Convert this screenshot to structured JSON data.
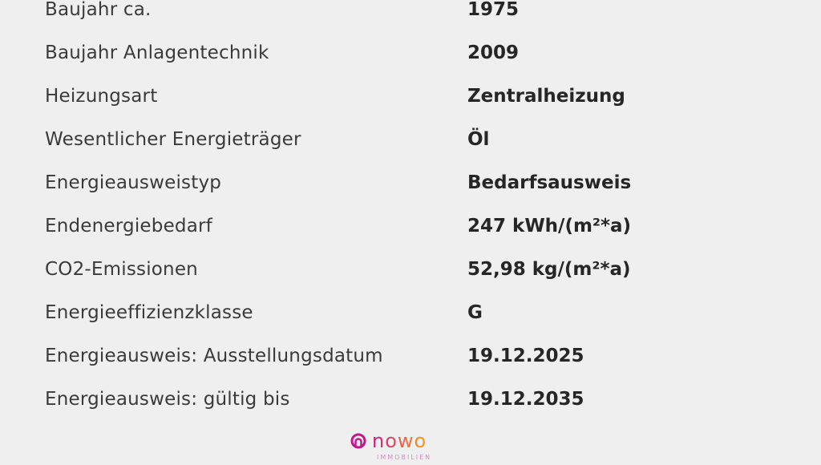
{
  "rows": [
    {
      "label": "Baujahr ca.",
      "value": "1975"
    },
    {
      "label": "Baujahr Anlagentechnik",
      "value": "2009"
    },
    {
      "label": "Heizungsart",
      "value": "Zentralheizung"
    },
    {
      "label": "Wesentlicher Energieträger",
      "value": "Öl"
    },
    {
      "label": "Energieausweistyp",
      "value": "Bedarfsausweis"
    },
    {
      "label": "Endenergiebedarf",
      "value": "247 kWh/(m²*a)"
    },
    {
      "label": "CO2-Emissionen",
      "value": "52,98 kg/(m²*a)"
    },
    {
      "label": "Energieeffizienzklasse",
      "value": "G"
    },
    {
      "label": "Energieausweis: Ausstellungsdatum",
      "value": "19.12.2025"
    },
    {
      "label": "Energieausweis: gültig bis",
      "value": "19.12.2035"
    }
  ],
  "logo": {
    "text": "nowo",
    "subtext": "IMMOBILIEN",
    "color_start": "#c2188f",
    "color_end": "#f7a21b"
  }
}
